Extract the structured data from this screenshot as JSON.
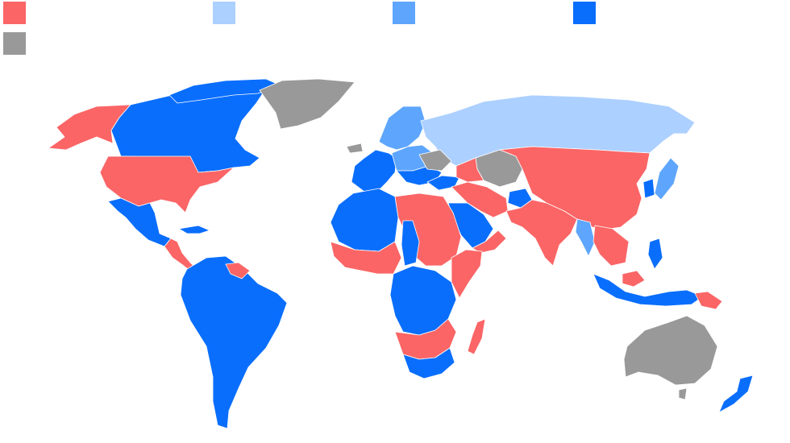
{
  "legend": [
    {
      "id": "red",
      "color": "#fb6566",
      "label": ""
    },
    {
      "id": "light-blue",
      "color": "#acd0ff",
      "label": ""
    },
    {
      "id": "mid-blue",
      "color": "#5ea6fd",
      "label": ""
    },
    {
      "id": "blue",
      "color": "#0a6efd",
      "label": ""
    },
    {
      "id": "gray",
      "color": "#999999",
      "label": ""
    }
  ],
  "colors": {
    "red": "#fb6566",
    "light_blue": "#acd0ff",
    "mid_blue": "#5ea6fd",
    "blue": "#0a6efd",
    "gray": "#999999",
    "background": "#ffffff"
  },
  "regions": [
    {
      "name": "alaska",
      "category": "red"
    },
    {
      "name": "canada",
      "category": "blue"
    },
    {
      "name": "greenland",
      "category": "gray"
    },
    {
      "name": "usa",
      "category": "red"
    },
    {
      "name": "mexico",
      "category": "blue"
    },
    {
      "name": "central-america",
      "category": "red"
    },
    {
      "name": "guianas",
      "category": "red"
    },
    {
      "name": "south-america",
      "category": "blue"
    },
    {
      "name": "iceland",
      "category": "gray"
    },
    {
      "name": "scandinavia",
      "category": "mid-blue"
    },
    {
      "name": "western-europe",
      "category": "blue"
    },
    {
      "name": "eastern-europe",
      "category": "mid-blue"
    },
    {
      "name": "russia",
      "category": "light-blue"
    },
    {
      "name": "turkey",
      "category": "gray"
    },
    {
      "name": "north-africa",
      "category": "blue"
    },
    {
      "name": "egypt-sudan",
      "category": "red"
    },
    {
      "name": "west-africa",
      "category": "red"
    },
    {
      "name": "central-africa",
      "category": "blue"
    },
    {
      "name": "east-africa",
      "category": "red"
    },
    {
      "name": "southern-africa",
      "category": "red"
    },
    {
      "name": "south-africa",
      "category": "blue"
    },
    {
      "name": "madagascar",
      "category": "red"
    },
    {
      "name": "arabia",
      "category": "blue"
    },
    {
      "name": "middle-east",
      "category": "red"
    },
    {
      "name": "afghanistan",
      "category": "blue"
    },
    {
      "name": "central-asia",
      "category": "gray"
    },
    {
      "name": "south-asia",
      "category": "red"
    },
    {
      "name": "myanmar",
      "category": "mid-blue"
    },
    {
      "name": "china-mongolia",
      "category": "red"
    },
    {
      "name": "southeast-asia",
      "category": "red"
    },
    {
      "name": "japan",
      "category": "mid-blue"
    },
    {
      "name": "korea",
      "category": "blue"
    },
    {
      "name": "indonesia",
      "category": "blue"
    },
    {
      "name": "papua-new-guinea",
      "category": "red"
    },
    {
      "name": "australia",
      "category": "gray"
    },
    {
      "name": "new-zealand",
      "category": "blue"
    }
  ]
}
